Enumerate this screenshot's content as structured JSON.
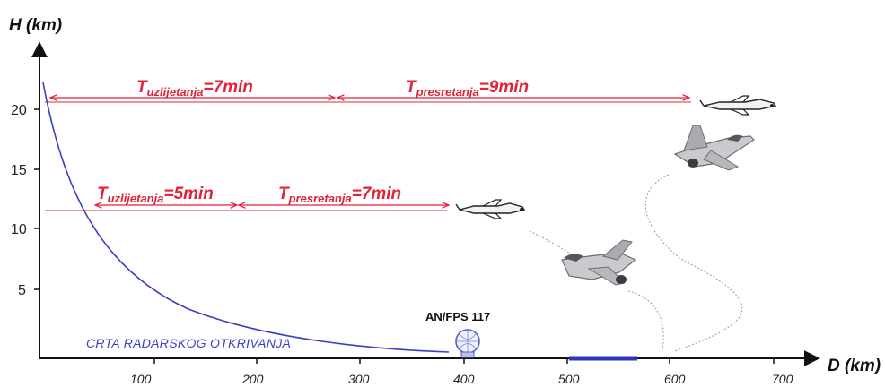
{
  "axes": {
    "y_label": "H (km)",
    "x_label": "D (km)",
    "y_ticks": [
      "5",
      "10",
      "15",
      "20"
    ],
    "x_ticks": [
      "100",
      "200",
      "300",
      "400",
      "500",
      "600",
      "700"
    ]
  },
  "annotations": {
    "top_climb": {
      "main": "T",
      "sub": "uzlijetanja",
      "value": "=7min"
    },
    "top_intercept": {
      "main": "T",
      "sub": "presretanja",
      "value": "=9min"
    },
    "low_climb": {
      "main": "T",
      "sub": "uzlijetanja",
      "value": "=5min"
    },
    "low_intercept": {
      "main": "T",
      "sub": "presretanja",
      "value": "=7min"
    }
  },
  "curve_label": "CRTA RADARSKOG OTKRIVANJA",
  "radar_label": "AN/FPS 117",
  "colors": {
    "annotation_red": "#e0233a",
    "curve_blue": "#3b3fc4",
    "runway_blue": "#2d36b8",
    "axis": "#111111"
  },
  "icons": [
    "target-aircraft-icon",
    "fighter-jet-icon",
    "radar-dome-icon"
  ]
}
